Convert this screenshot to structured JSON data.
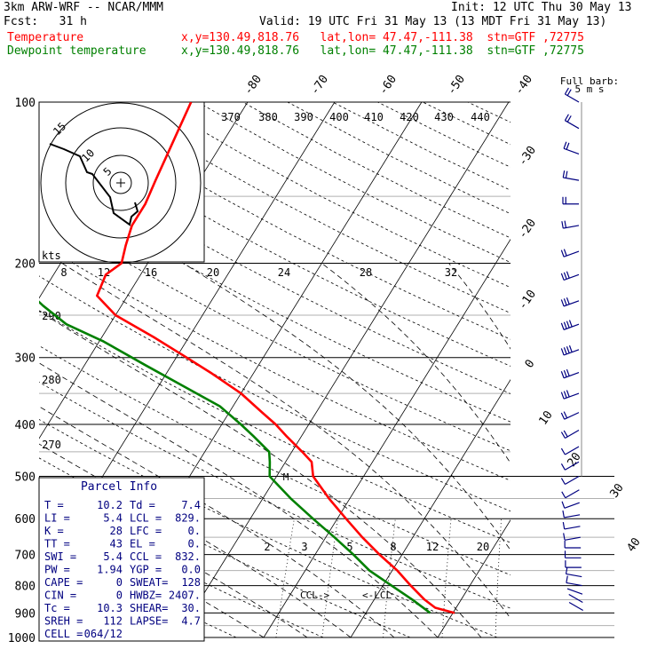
{
  "header": {
    "model": "3km ARW-WRF -- NCAR/MMM",
    "init": "Init: 12 UTC Thu 30 May 13",
    "fcst": "Fcst:   31 h",
    "valid": "Valid: 19 UTC Fri 31 May 13 (13 MDT Fri 31 May 13)",
    "temp_label": "Temperature",
    "dew_label": "Dewpoint temperature",
    "loc_temp": "x,y=130.49,818.76   lat,lon= 47.47,-111.38  stn=GTF ,72775",
    "loc_dew": "x,y=130.49,818.76   lat,lon= 47.47,-111.38  stn=GTF ,72775"
  },
  "colors": {
    "temperature": "#ff0000",
    "dewpoint": "#008000",
    "wind": "#000080",
    "hodograph": "#000000"
  },
  "parcel_info": {
    "title": "Parcel Info",
    "rows": [
      [
        "T  =",
        "10.2",
        "Td =",
        "7.4"
      ],
      [
        "LI =",
        "5.4",
        "LCL =",
        "829."
      ],
      [
        "K  =",
        "28",
        "LFC =",
        "0."
      ],
      [
        "TT =",
        "43",
        "EL  =",
        "0."
      ],
      [
        "SWI =",
        "5.4",
        "CCL =",
        "832."
      ],
      [
        "PW =",
        "1.94",
        "YGP =",
        "0.0"
      ],
      [
        "CAPE =",
        "0",
        "SWEAT=",
        "128"
      ],
      [
        "CIN =",
        "0",
        "HWBZ=",
        "2407."
      ],
      [
        "Tc =",
        "10.3",
        "SHEAR=",
        "30."
      ],
      [
        "SREH =",
        "112",
        "LAPSE=",
        "4.7"
      ],
      [
        "CELL =",
        "064/12",
        "",
        ""
      ]
    ]
  },
  "wind_barb_label": "Full barb:",
  "wind_barb_units": "5 m s",
  "hodograph": {
    "rings": [
      "5",
      "10",
      "15"
    ],
    "kts_label": "kts",
    "points": [
      [
        -2.0,
        1.0
      ],
      [
        -2.5,
        3.5
      ],
      [
        -4.0,
        2.5
      ],
      [
        -4.0,
        5.0
      ],
      [
        -6.5,
        5.5
      ],
      [
        -7.0,
        8.0
      ],
      [
        -9.5,
        9.5
      ],
      [
        -11.0,
        11.5
      ]
    ]
  },
  "chart_data": {
    "type": "line",
    "title": "",
    "xlabel": "",
    "ylabel": "",
    "y_scale": "log-pressure",
    "ylim": [
      1000,
      100
    ],
    "pressure_ticks": [
      "100",
      "200",
      "300",
      "400",
      "500",
      "600",
      "700",
      "800",
      "900",
      "1000"
    ],
    "skewed_isotherm_labels": [
      "-80",
      "-70",
      "-60",
      "-50",
      "-40",
      "-30",
      "-20",
      "-10",
      "0",
      "10",
      "20",
      "30",
      "40"
    ],
    "theta_labels": [
      "370",
      "380",
      "390",
      "400",
      "410",
      "420",
      "430",
      "440"
    ],
    "dry_adiabat_labels": [
      "290",
      "280",
      "270"
    ],
    "mixing_ratio_labels": [
      "2",
      "3",
      "5",
      "8",
      "12",
      "20"
    ],
    "hodo_speed_labels": [
      "8",
      "12",
      "16",
      "20",
      "24",
      "28",
      "32"
    ],
    "annotations": [
      "CCL",
      "LCL",
      "M"
    ],
    "series": [
      {
        "name": "Temperature",
        "color": "#ff0000",
        "points": [
          [
            900,
            10.2
          ],
          [
            880,
            7.6
          ],
          [
            850,
            5.8
          ],
          [
            800,
            3.2
          ],
          [
            750,
            0.6
          ],
          [
            700,
            -2.6
          ],
          [
            650,
            -5.8
          ],
          [
            600,
            -9.0
          ],
          [
            550,
            -12.4
          ],
          [
            500,
            -15.8
          ],
          [
            470,
            -17.0
          ],
          [
            450,
            -18.8
          ],
          [
            420,
            -21.8
          ],
          [
            400,
            -23.8
          ],
          [
            380,
            -26.2
          ],
          [
            350,
            -30.0
          ],
          [
            320,
            -35.0
          ],
          [
            300,
            -38.8
          ],
          [
            275,
            -44.0
          ],
          [
            250,
            -50.0
          ],
          [
            230,
            -53.5
          ],
          [
            210,
            -54.0
          ],
          [
            200,
            -53.0
          ],
          [
            185,
            -53.8
          ],
          [
            170,
            -54.5
          ],
          [
            155,
            -54.5
          ],
          [
            140,
            -55.0
          ],
          [
            125,
            -55.5
          ],
          [
            112,
            -56.0
          ],
          [
            100,
            -56.5
          ]
        ]
      },
      {
        "name": "Dewpoint temperature",
        "color": "#008000",
        "points": [
          [
            900,
            7.4
          ],
          [
            850,
            4.4
          ],
          [
            800,
            1.0
          ],
          [
            750,
            -2.6
          ],
          [
            700,
            -5.6
          ],
          [
            650,
            -9.0
          ],
          [
            600,
            -12.8
          ],
          [
            550,
            -16.8
          ],
          [
            500,
            -20.8
          ],
          [
            470,
            -21.8
          ],
          [
            450,
            -22.6
          ],
          [
            420,
            -25.6
          ],
          [
            400,
            -27.8
          ],
          [
            370,
            -31.5
          ],
          [
            340,
            -37.0
          ],
          [
            310,
            -43.0
          ],
          [
            280,
            -49.5
          ],
          [
            260,
            -55.0
          ],
          [
            240,
            -59.0
          ],
          [
            215,
            -64.0
          ],
          [
            200,
            -67.0
          ],
          [
            180,
            -72.0
          ],
          [
            160,
            -79.5
          ],
          [
            145,
            -80.5
          ],
          [
            130,
            -84.0
          ],
          [
            115,
            -88.0
          ],
          [
            100,
            -90.5
          ]
        ]
      }
    ],
    "wind_profile": [
      {
        "p": 890,
        "speed": 3,
        "dir": 300
      },
      {
        "p": 860,
        "speed": 4,
        "dir": 300
      },
      {
        "p": 830,
        "speed": 4,
        "dir": 290
      },
      {
        "p": 800,
        "speed": 5,
        "dir": 280
      },
      {
        "p": 770,
        "speed": 5,
        "dir": 280
      },
      {
        "p": 740,
        "speed": 6,
        "dir": 270
      },
      {
        "p": 710,
        "speed": 6,
        "dir": 270
      },
      {
        "p": 680,
        "speed": 7,
        "dir": 270
      },
      {
        "p": 650,
        "speed": 7,
        "dir": 260
      },
      {
        "p": 620,
        "speed": 6,
        "dir": 260
      },
      {
        "p": 590,
        "speed": 5,
        "dir": 260
      },
      {
        "p": 560,
        "speed": 5,
        "dir": 250
      },
      {
        "p": 530,
        "speed": 5,
        "dir": 240
      },
      {
        "p": 500,
        "speed": 6,
        "dir": 240
      },
      {
        "p": 470,
        "speed": 8,
        "dir": 240
      },
      {
        "p": 440,
        "speed": 9,
        "dir": 240
      },
      {
        "p": 410,
        "speed": 10,
        "dir": 240
      },
      {
        "p": 380,
        "speed": 12,
        "dir": 245
      },
      {
        "p": 350,
        "speed": 15,
        "dir": 250
      },
      {
        "p": 320,
        "speed": 18,
        "dir": 250
      },
      {
        "p": 290,
        "speed": 20,
        "dir": 250
      },
      {
        "p": 260,
        "speed": 20,
        "dir": 250
      },
      {
        "p": 235,
        "speed": 18,
        "dir": 250
      },
      {
        "p": 210,
        "speed": 15,
        "dir": 250
      },
      {
        "p": 190,
        "speed": 12,
        "dir": 250
      },
      {
        "p": 170,
        "speed": 10,
        "dir": 260
      },
      {
        "p": 155,
        "speed": 10,
        "dir": 270
      },
      {
        "p": 140,
        "speed": 10,
        "dir": 280
      },
      {
        "p": 125,
        "speed": 11,
        "dir": 290
      },
      {
        "p": 112,
        "speed": 12,
        "dir": 300
      },
      {
        "p": 100,
        "speed": 12,
        "dir": 300
      }
    ]
  }
}
